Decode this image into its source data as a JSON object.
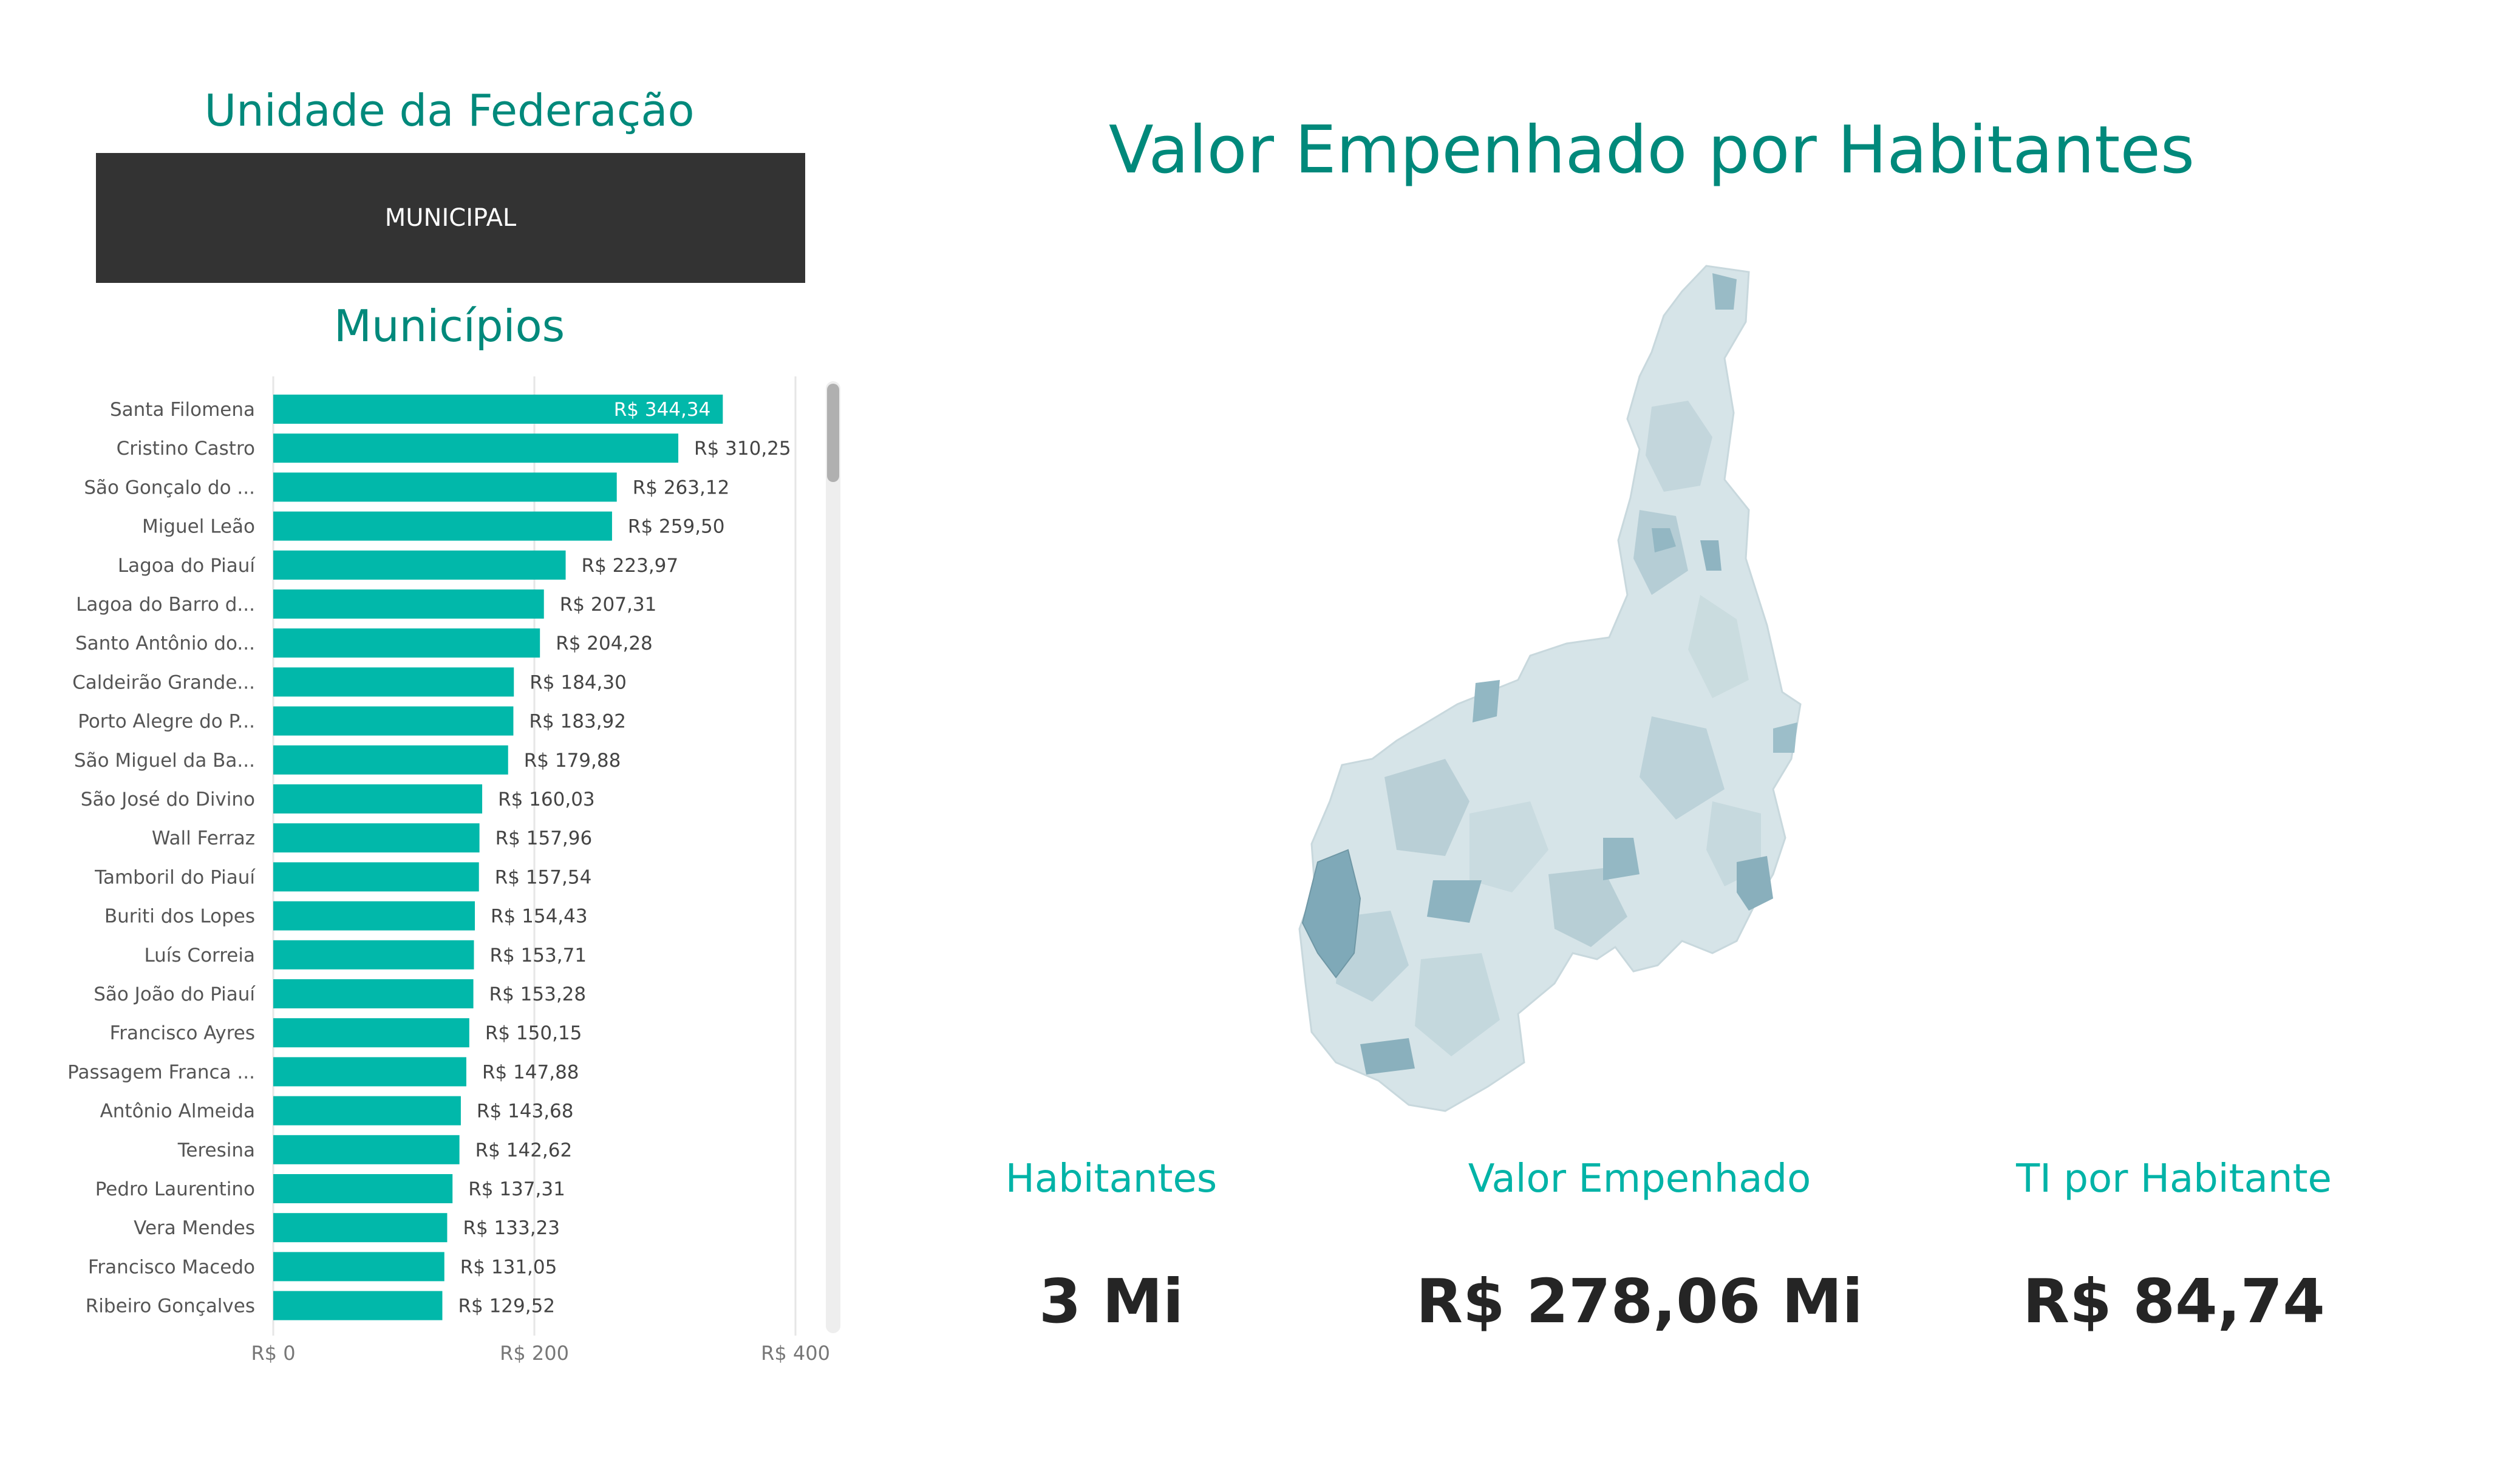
{
  "slicer": {
    "title": "Unidade da Federação",
    "selected": "MUNICIPAL"
  },
  "bar_title": "Municípios",
  "map_title": "Valor Empenhado por Habitantes",
  "kpis": {
    "habitantes": {
      "label": "Habitantes",
      "value": "3 Mi"
    },
    "valor": {
      "label": "Valor Empenhado",
      "value": "R$ 278,06 Mi"
    },
    "ti": {
      "label": "TI por Habitante",
      "value": "R$ 84,74"
    }
  },
  "colors": {
    "bar": "#01b8aa",
    "title": "#00897b",
    "kpi_label": "#00b3a7",
    "map_base": "#d6e4e8",
    "map_dark": "#7fa9b8"
  },
  "chart_data": {
    "type": "bar",
    "orientation": "horizontal",
    "categories": [
      "Santa Filomena",
      "Cristino Castro",
      "São Gonçalo do ...",
      "Miguel Leão",
      "Lagoa do Piauí",
      "Lagoa do Barro d...",
      "Santo Antônio do...",
      "Caldeirão Grande...",
      "Porto Alegre do P...",
      "São Miguel da Ba...",
      "São José do Divino",
      "Wall Ferraz",
      "Tamboril do Piauí",
      "Buriti dos Lopes",
      "Luís Correia",
      "São João do Piauí",
      "Francisco Ayres",
      "Passagem Franca ...",
      "Antônio Almeida",
      "Teresina",
      "Pedro Laurentino",
      "Vera Mendes",
      "Francisco Macedo",
      "Ribeiro Gonçalves"
    ],
    "values": [
      344.34,
      310.25,
      263.12,
      259.5,
      223.97,
      207.31,
      204.28,
      184.3,
      183.92,
      179.88,
      160.03,
      157.96,
      157.54,
      154.43,
      153.71,
      153.28,
      150.15,
      147.88,
      143.68,
      142.62,
      137.31,
      133.23,
      131.05,
      129.52
    ],
    "labels": [
      "R$ 344,34",
      "R$ 310,25",
      "R$ 263,12",
      "R$ 259,50",
      "R$ 223,97",
      "R$ 207,31",
      "R$ 204,28",
      "R$ 184,30",
      "R$ 183,92",
      "R$ 179,88",
      "R$ 160,03",
      "R$ 157,96",
      "R$ 157,54",
      "R$ 154,43",
      "R$ 153,71",
      "R$ 153,28",
      "R$ 150,15",
      "R$ 147,88",
      "R$ 143,68",
      "R$ 142,62",
      "R$ 137,31",
      "R$ 133,23",
      "R$ 131,05",
      "R$ 129,52"
    ],
    "xticks": [
      "R$ 0",
      "R$ 200",
      "R$ 400"
    ],
    "xtick_values": [
      0,
      200,
      400
    ],
    "xlim": [
      0,
      400
    ],
    "grid": true
  }
}
